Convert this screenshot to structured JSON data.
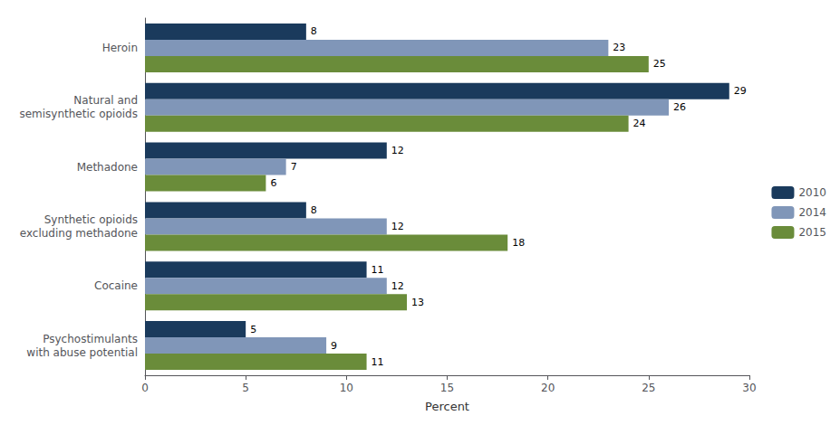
{
  "chart_data": {
    "type": "bar",
    "orientation": "horizontal",
    "categories": [
      "Psychostimulants\nwith abuse potential",
      "Cocaine",
      "Synthetic opioids\nexcluding methadone",
      "Methadone",
      "Natural and\nsemisynthetic opioids",
      "Heroin"
    ],
    "series": [
      {
        "name": "2010",
        "color": "#1a3a5c",
        "values": [
          5,
          11,
          8,
          12,
          29,
          8
        ]
      },
      {
        "name": "2014",
        "color": "#8096b8",
        "values": [
          9,
          12,
          12,
          7,
          26,
          23
        ]
      },
      {
        "name": "2015",
        "color": "#6a8c3a",
        "values": [
          11,
          13,
          18,
          6,
          24,
          25
        ]
      }
    ],
    "xlabel": "Percent",
    "xlim": [
      0,
      30
    ],
    "xticks": [
      0,
      5,
      10,
      15,
      20,
      25,
      30
    ],
    "data_labels": true,
    "grid": false,
    "legend": "right"
  }
}
